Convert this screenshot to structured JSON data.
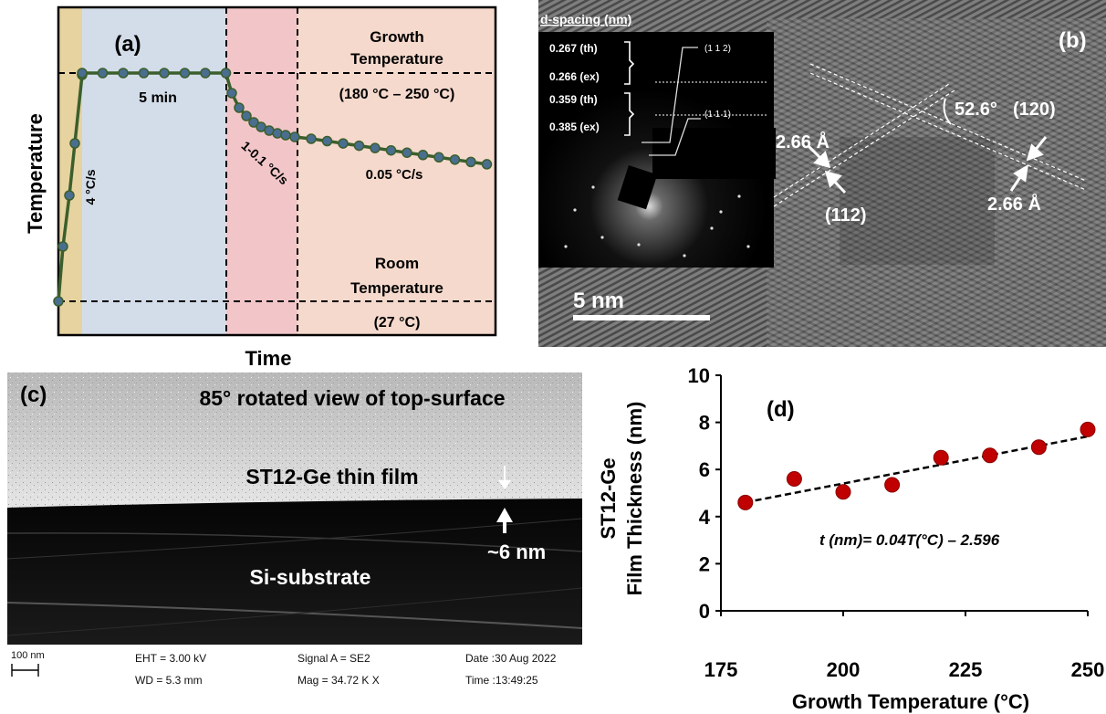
{
  "panel_a": {
    "label": "(a)",
    "ylabel": "Temperature",
    "xlabel": "Time",
    "hold_label": "5 min",
    "ramp_label": "4 °C/s",
    "cool_fast_label": "1-0.1 °C/s",
    "cool_slow_label": "0.05 °C/s",
    "growth_title_1": "Growth",
    "growth_title_2": "Temperature",
    "growth_range": "(180 °C – 250 °C)",
    "room_title_1": "Room",
    "room_title_2": "Temperature",
    "room_value": "(27 °C)",
    "colors": {
      "ramp": "#e7d3a0",
      "hold": "#d3dde9",
      "cool": "#f2c6c9",
      "stable": "#f5d9cc",
      "line": "#3b5f2c",
      "marker": "#4a6e8f"
    }
  },
  "panel_b": {
    "label": "(b)",
    "inset_title": "d-spacing (nm)",
    "pairs": [
      {
        "th": "0.267 (th)",
        "ex": "0.266 (ex)",
        "plane": "(1 1 2)"
      },
      {
        "th": "0.359 (th)",
        "ex": "0.385 (ex)",
        "plane": "(1 1 1)"
      }
    ],
    "spacing_left": "2.66 Å",
    "spacing_right": "2.66 Å",
    "angle": "52.6°",
    "plane_a": "(112)",
    "plane_b": "(120)",
    "scale_bar": "5 nm"
  },
  "panel_c": {
    "label": "(c)",
    "view_title": "85° rotated view of top-surface",
    "film_label": "ST12-Ge thin film",
    "substrate_label": "Si-substrate",
    "thickness_label": "~6 nm",
    "footer": {
      "scale": "100 nm",
      "eht": "EHT =  3.00 kV",
      "wd": "WD =  5.3 mm",
      "signal": "Signal A = SE2",
      "mag": "Mag =  34.72 K X",
      "date": "Date :30 Aug 2022",
      "time": "Time :13:49:25"
    }
  },
  "chart_data": {
    "type": "scatter",
    "label": "(d)",
    "ylabel_line1": "ST12-Ge",
    "ylabel_line2": "Film Thickness (nm)",
    "xlabel": "Growth Temperature (°C)",
    "equation": "t (nm)= 0.04T(°C) – 2.596",
    "x": [
      180,
      190,
      200,
      210,
      220,
      230,
      240,
      250
    ],
    "y": [
      4.6,
      5.6,
      5.05,
      5.35,
      6.5,
      6.6,
      6.95,
      7.7
    ],
    "trend": {
      "slope": 0.04,
      "intercept": -2.596
    },
    "xlim": [
      175,
      250
    ],
    "ylim": [
      0,
      10
    ],
    "xticks": [
      175,
      200,
      225,
      250
    ],
    "yticks": [
      0,
      2,
      4,
      6,
      8,
      10
    ],
    "marker_color": "#c00000"
  }
}
